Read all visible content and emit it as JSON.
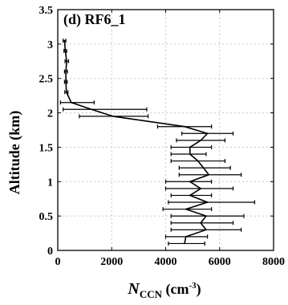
{
  "chart_data": {
    "type": "line",
    "title": "(d) RF6_1",
    "xlabel_main": "N",
    "xlabel_sub": "CCN",
    "xlabel_unit": " (cm",
    "xlabel_unit_exp": "-3",
    "xlabel_unit_close": ")",
    "ylabel": "Altitude (km)",
    "xlim": [
      0,
      8000
    ],
    "ylim": [
      0,
      3.5
    ],
    "x_ticks": [
      "0",
      "2000",
      "4000",
      "6000",
      "8000"
    ],
    "y_ticks": [
      "0",
      "0.5",
      "1",
      "1.5",
      "2",
      "2.5",
      "3",
      "3.5"
    ],
    "grid": true,
    "series": [
      {
        "points": [
          {
            "x": 4700,
            "y": 0.1,
            "xerr_low": 4100,
            "xerr_high": 5450
          },
          {
            "x": 4750,
            "y": 0.2,
            "xerr_low": 4000,
            "xerr_high": 5550
          },
          {
            "x": 5500,
            "y": 0.3,
            "xerr_low": 4200,
            "xerr_high": 6800
          },
          {
            "x": 5300,
            "y": 0.4,
            "xerr_low": 4200,
            "xerr_high": 6500
          },
          {
            "x": 5500,
            "y": 0.5,
            "xerr_low": 4200,
            "xerr_high": 6900
          },
          {
            "x": 4750,
            "y": 0.6,
            "xerr_low": 3900,
            "xerr_high": 5700
          },
          {
            "x": 5550,
            "y": 0.7,
            "xerr_low": 4100,
            "xerr_high": 7300
          },
          {
            "x": 4900,
            "y": 0.8,
            "xerr_low": 4200,
            "xerr_high": 5700
          },
          {
            "x": 5300,
            "y": 0.9,
            "xerr_low": 4000,
            "xerr_high": 6500
          },
          {
            "x": 4900,
            "y": 1.0,
            "xerr_low": 4000,
            "xerr_high": 5700
          },
          {
            "x": 5600,
            "y": 1.1,
            "xerr_low": 4500,
            "xerr_high": 6800
          },
          {
            "x": 5400,
            "y": 1.2,
            "xerr_low": 4500,
            "xerr_high": 6400
          },
          {
            "x": 5200,
            "y": 1.3,
            "xerr_low": 4200,
            "xerr_high": 6200
          },
          {
            "x": 4900,
            "y": 1.4,
            "xerr_low": 4200,
            "xerr_high": 5500
          },
          {
            "x": 4900,
            "y": 1.5,
            "xerr_low": 4200,
            "xerr_high": 5700
          },
          {
            "x": 5300,
            "y": 1.6,
            "xerr_low": 4400,
            "xerr_high": 6200
          },
          {
            "x": 5550,
            "y": 1.7,
            "xerr_low": 4600,
            "xerr_high": 6500
          },
          {
            "x": 4700,
            "y": 1.8,
            "xerr_low": 3700,
            "xerr_high": 5700
          },
          {
            "x": 2050,
            "y": 1.95,
            "xerr_low": 800,
            "xerr_high": 3350
          },
          {
            "x": 1250,
            "y": 2.05,
            "xerr_low": 200,
            "xerr_high": 3300
          },
          {
            "x": 500,
            "y": 2.15,
            "xerr_low": 100,
            "xerr_high": 1350
          },
          {
            "x": 320,
            "y": 2.3,
            "xerr_low": 260,
            "xerr_high": 380
          },
          {
            "x": 300,
            "y": 2.45,
            "xerr_low": 250,
            "xerr_high": 350
          },
          {
            "x": 300,
            "y": 2.6,
            "xerr_low": 250,
            "xerr_high": 360
          },
          {
            "x": 330,
            "y": 2.75,
            "xerr_low": 270,
            "xerr_high": 400
          },
          {
            "x": 280,
            "y": 2.9,
            "xerr_low": 230,
            "xerr_high": 330
          },
          {
            "x": 250,
            "y": 3.05,
            "xerr_low": 200,
            "xerr_high": 300
          }
        ]
      }
    ]
  }
}
